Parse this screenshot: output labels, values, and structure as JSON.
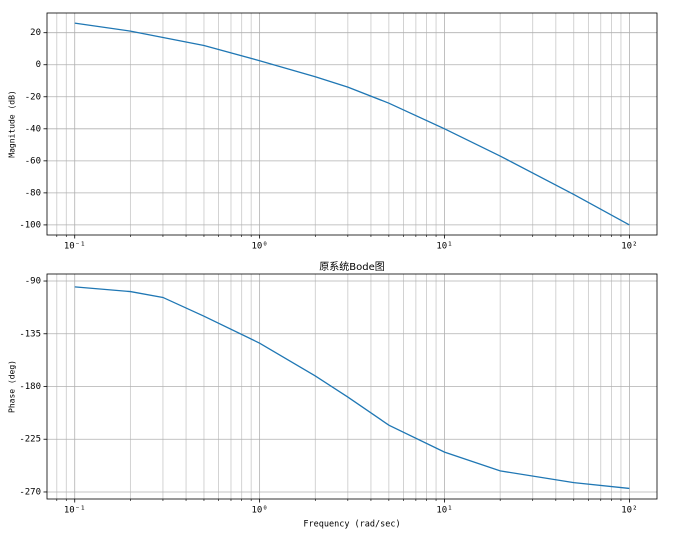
{
  "chart_data": [
    {
      "type": "line",
      "ylabel": "Magnitude (dB)",
      "xscale": "log",
      "grid": true,
      "color": "#1f77b4",
      "x": [
        0.1,
        0.2,
        0.5,
        1,
        2,
        3,
        5,
        10,
        20,
        50,
        100
      ],
      "values": [
        26,
        21,
        12,
        2.5,
        -7.5,
        -14,
        -24,
        -40,
        -57,
        -81,
        -100
      ],
      "xlim": [
        0.0708,
        141
      ],
      "ylim": [
        -106.3,
        32.3
      ],
      "xticks": [
        {
          "value": 0.1,
          "label": "10⁻¹"
        },
        {
          "value": 1,
          "label": "10⁰"
        },
        {
          "value": 10,
          "label": "10¹"
        },
        {
          "value": 100,
          "label": "10²"
        }
      ],
      "xminorticks": [
        0.08,
        0.09,
        0.2,
        0.3,
        0.4,
        0.5,
        0.6,
        0.7,
        0.8,
        0.9,
        2,
        3,
        4,
        5,
        6,
        7,
        8,
        9,
        20,
        30,
        40,
        50,
        60,
        70,
        80,
        90
      ],
      "yticks": [
        -100,
        -80,
        -60,
        -40,
        -20,
        0,
        20
      ]
    },
    {
      "type": "line",
      "title": "原系统Bode图",
      "ylabel": "Phase (deg)",
      "xlabel": "Frequency (rad/sec)",
      "xscale": "log",
      "grid": true,
      "color": "#1f77b4",
      "x": [
        0.1,
        0.2,
        0.3,
        0.5,
        1,
        2,
        3,
        5,
        10,
        20,
        50,
        100
      ],
      "values": [
        -95,
        -99,
        -104,
        -120,
        -143,
        -171,
        -189,
        -213,
        -236,
        -252,
        -262,
        -267
      ],
      "xlim": [
        0.0708,
        141
      ],
      "ylim": [
        -276,
        -84
      ],
      "xticks": [
        {
          "value": 0.1,
          "label": "10⁻¹"
        },
        {
          "value": 1,
          "label": "10⁰"
        },
        {
          "value": 10,
          "label": "10¹"
        },
        {
          "value": 100,
          "label": "10²"
        }
      ],
      "xminorticks": [
        0.08,
        0.09,
        0.2,
        0.3,
        0.4,
        0.5,
        0.6,
        0.7,
        0.8,
        0.9,
        2,
        3,
        4,
        5,
        6,
        7,
        8,
        9,
        20,
        30,
        40,
        50,
        60,
        70,
        80,
        90
      ],
      "yticks": [
        -270,
        -225,
        -180,
        -135,
        -90
      ]
    }
  ]
}
